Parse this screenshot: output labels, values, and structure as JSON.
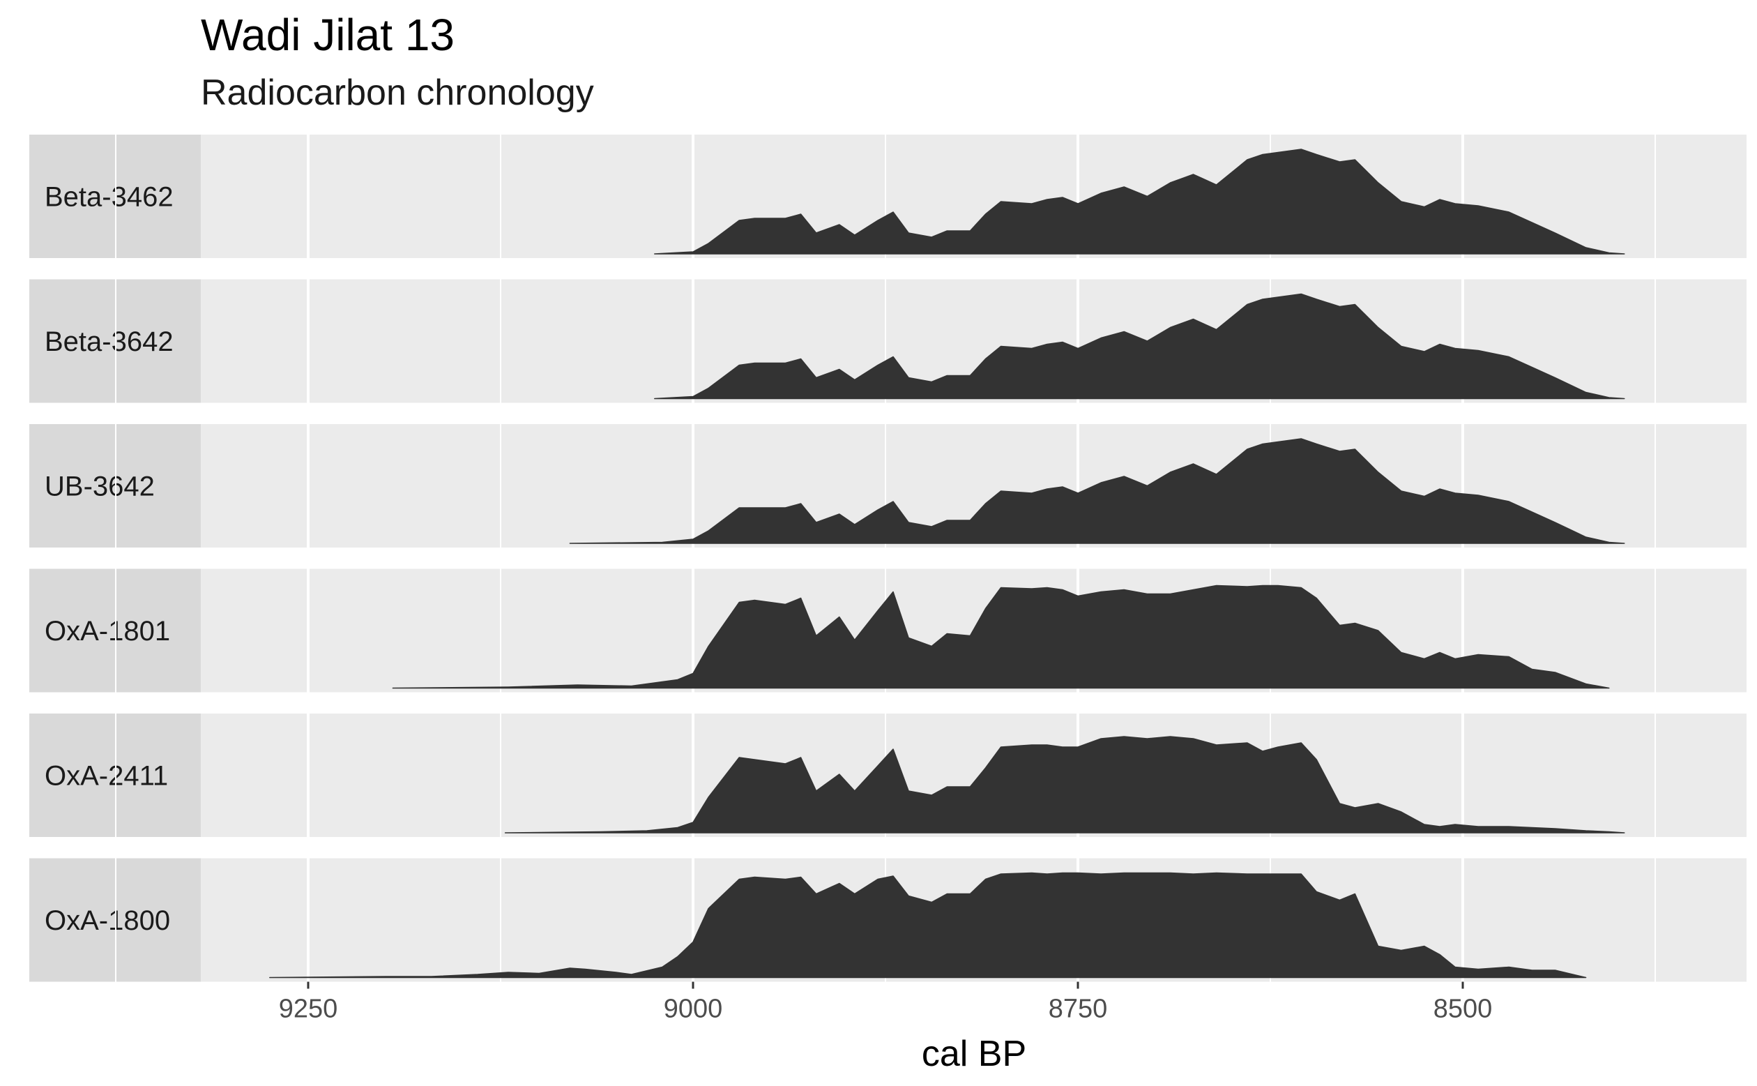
{
  "chart_data": {
    "type": "area",
    "title": "Wadi Jilat 13",
    "subtitle": "Radiocarbon chronology",
    "xlabel": "cal BP",
    "ylabel": "",
    "x_reversed": true,
    "xlim": [
      9360,
      8400
    ],
    "xticks": [
      9250,
      9000,
      8750,
      8500
    ],
    "xtick_labels": [
      "9250",
      "9000",
      "8750",
      "8500"
    ],
    "grid": true,
    "colors": {
      "panel": "#ebebeb",
      "strip": "#d9d9d9",
      "grid": "#ffffff",
      "fill": "#333333",
      "text": "#1a1a1a",
      "tick_text": "#4d4d4d"
    },
    "series": [
      {
        "name": "Beta-3462",
        "x": [
          9025,
          9000,
          8990,
          8970,
          8960,
          8940,
          8930,
          8920,
          8905,
          8895,
          8880,
          8870,
          8860,
          8845,
          8835,
          8820,
          8810,
          8800,
          8780,
          8770,
          8760,
          8750,
          8735,
          8720,
          8705,
          8690,
          8675,
          8660,
          8640,
          8630,
          8620,
          8605,
          8595,
          8580,
          8570,
          8555,
          8540,
          8525,
          8515,
          8505,
          8490,
          8470,
          8455,
          8440,
          8420,
          8405,
          8395
        ],
        "y": [
          0.0,
          0.02,
          0.1,
          0.32,
          0.34,
          0.34,
          0.38,
          0.2,
          0.28,
          0.18,
          0.32,
          0.4,
          0.2,
          0.16,
          0.22,
          0.22,
          0.38,
          0.5,
          0.48,
          0.52,
          0.54,
          0.48,
          0.58,
          0.64,
          0.55,
          0.68,
          0.76,
          0.66,
          0.9,
          0.95,
          0.97,
          1.0,
          0.95,
          0.88,
          0.9,
          0.68,
          0.5,
          0.45,
          0.52,
          0.48,
          0.46,
          0.4,
          0.3,
          0.2,
          0.06,
          0.01,
          0.0
        ]
      },
      {
        "name": "Beta-3642",
        "x": [
          9025,
          9000,
          8990,
          8970,
          8960,
          8940,
          8930,
          8920,
          8905,
          8895,
          8880,
          8870,
          8860,
          8845,
          8835,
          8820,
          8810,
          8800,
          8780,
          8770,
          8760,
          8750,
          8735,
          8720,
          8705,
          8690,
          8675,
          8660,
          8640,
          8630,
          8620,
          8605,
          8595,
          8580,
          8570,
          8555,
          8540,
          8525,
          8515,
          8505,
          8490,
          8470,
          8455,
          8440,
          8420,
          8405,
          8395
        ],
        "y": [
          0.0,
          0.02,
          0.1,
          0.32,
          0.34,
          0.34,
          0.38,
          0.2,
          0.28,
          0.18,
          0.32,
          0.4,
          0.2,
          0.16,
          0.22,
          0.22,
          0.38,
          0.5,
          0.48,
          0.52,
          0.54,
          0.48,
          0.58,
          0.64,
          0.55,
          0.68,
          0.76,
          0.66,
          0.9,
          0.95,
          0.97,
          1.0,
          0.95,
          0.88,
          0.9,
          0.68,
          0.5,
          0.45,
          0.52,
          0.48,
          0.46,
          0.4,
          0.3,
          0.2,
          0.06,
          0.01,
          0.0
        ]
      },
      {
        "name": "UB-3642",
        "x": [
          9080,
          9020,
          9000,
          8990,
          8970,
          8960,
          8940,
          8930,
          8920,
          8905,
          8895,
          8880,
          8870,
          8860,
          8845,
          8835,
          8820,
          8810,
          8800,
          8780,
          8770,
          8760,
          8750,
          8735,
          8720,
          8705,
          8690,
          8675,
          8660,
          8640,
          8630,
          8620,
          8605,
          8595,
          8580,
          8570,
          8555,
          8540,
          8525,
          8515,
          8505,
          8490,
          8470,
          8455,
          8440,
          8420,
          8405,
          8395
        ],
        "y": [
          0.0,
          0.01,
          0.04,
          0.12,
          0.34,
          0.34,
          0.34,
          0.38,
          0.2,
          0.28,
          0.18,
          0.32,
          0.4,
          0.2,
          0.16,
          0.22,
          0.22,
          0.38,
          0.5,
          0.48,
          0.52,
          0.54,
          0.48,
          0.58,
          0.64,
          0.55,
          0.68,
          0.76,
          0.66,
          0.9,
          0.95,
          0.97,
          1.0,
          0.95,
          0.88,
          0.9,
          0.68,
          0.5,
          0.45,
          0.52,
          0.48,
          0.46,
          0.4,
          0.3,
          0.2,
          0.06,
          0.01,
          0.0
        ]
      },
      {
        "name": "OxA-1801",
        "x": [
          9195,
          9120,
          9075,
          9040,
          9010,
          9000,
          8990,
          8970,
          8960,
          8940,
          8930,
          8920,
          8905,
          8895,
          8880,
          8870,
          8860,
          8845,
          8835,
          8820,
          8810,
          8800,
          8780,
          8770,
          8760,
          8750,
          8735,
          8720,
          8705,
          8690,
          8675,
          8660,
          8640,
          8630,
          8620,
          8605,
          8595,
          8580,
          8570,
          8555,
          8540,
          8525,
          8515,
          8505,
          8490,
          8470,
          8455,
          8440,
          8420,
          8405
        ],
        "y": [
          0.0,
          0.01,
          0.03,
          0.02,
          0.08,
          0.14,
          0.4,
          0.82,
          0.84,
          0.8,
          0.86,
          0.5,
          0.68,
          0.46,
          0.74,
          0.92,
          0.48,
          0.4,
          0.52,
          0.5,
          0.76,
          0.96,
          0.95,
          0.96,
          0.94,
          0.88,
          0.92,
          0.94,
          0.9,
          0.9,
          0.94,
          0.98,
          0.97,
          0.98,
          0.98,
          0.96,
          0.86,
          0.6,
          0.62,
          0.55,
          0.34,
          0.28,
          0.34,
          0.28,
          0.32,
          0.3,
          0.18,
          0.15,
          0.04,
          0.0
        ]
      },
      {
        "name": "OxA-2411",
        "x": [
          9122,
          9060,
          9030,
          9010,
          9000,
          8990,
          8970,
          8960,
          8940,
          8930,
          8920,
          8905,
          8895,
          8880,
          8870,
          8860,
          8845,
          8835,
          8820,
          8810,
          8800,
          8780,
          8770,
          8760,
          8750,
          8735,
          8720,
          8705,
          8690,
          8675,
          8660,
          8640,
          8630,
          8620,
          8605,
          8595,
          8580,
          8570,
          8555,
          8540,
          8525,
          8515,
          8505,
          8490,
          8470,
          8455,
          8440,
          8420,
          8405,
          8395
        ],
        "y": [
          0.0,
          0.01,
          0.02,
          0.05,
          0.1,
          0.34,
          0.72,
          0.7,
          0.66,
          0.72,
          0.4,
          0.56,
          0.4,
          0.64,
          0.8,
          0.4,
          0.36,
          0.44,
          0.44,
          0.62,
          0.82,
          0.84,
          0.84,
          0.82,
          0.82,
          0.9,
          0.92,
          0.9,
          0.92,
          0.9,
          0.84,
          0.86,
          0.78,
          0.82,
          0.86,
          0.7,
          0.28,
          0.24,
          0.28,
          0.2,
          0.08,
          0.06,
          0.08,
          0.06,
          0.06,
          0.05,
          0.04,
          0.02,
          0.01,
          0.0
        ]
      },
      {
        "name": "OxA-1800",
        "x": [
          9275,
          9200,
          9170,
          9140,
          9120,
          9100,
          9080,
          9070,
          9050,
          9040,
          9020,
          9010,
          9000,
          8990,
          8970,
          8960,
          8940,
          8930,
          8920,
          8905,
          8895,
          8880,
          8870,
          8860,
          8845,
          8835,
          8820,
          8810,
          8800,
          8780,
          8770,
          8760,
          8750,
          8735,
          8720,
          8705,
          8690,
          8675,
          8660,
          8640,
          8630,
          8620,
          8605,
          8595,
          8580,
          8570,
          8555,
          8540,
          8525,
          8515,
          8505,
          8490,
          8470,
          8455,
          8440,
          8420
        ],
        "y": [
          0.0,
          0.01,
          0.01,
          0.03,
          0.05,
          0.04,
          0.09,
          0.08,
          0.05,
          0.03,
          0.1,
          0.2,
          0.34,
          0.66,
          0.94,
          0.96,
          0.94,
          0.96,
          0.8,
          0.9,
          0.8,
          0.94,
          0.97,
          0.78,
          0.72,
          0.8,
          0.8,
          0.94,
          0.99,
          1.0,
          0.99,
          1.0,
          1.0,
          0.99,
          1.0,
          1.0,
          1.0,
          0.99,
          1.0,
          0.99,
          0.99,
          0.99,
          0.99,
          0.82,
          0.74,
          0.8,
          0.3,
          0.26,
          0.3,
          0.22,
          0.1,
          0.08,
          0.1,
          0.07,
          0.07,
          0.0
        ]
      }
    ]
  }
}
